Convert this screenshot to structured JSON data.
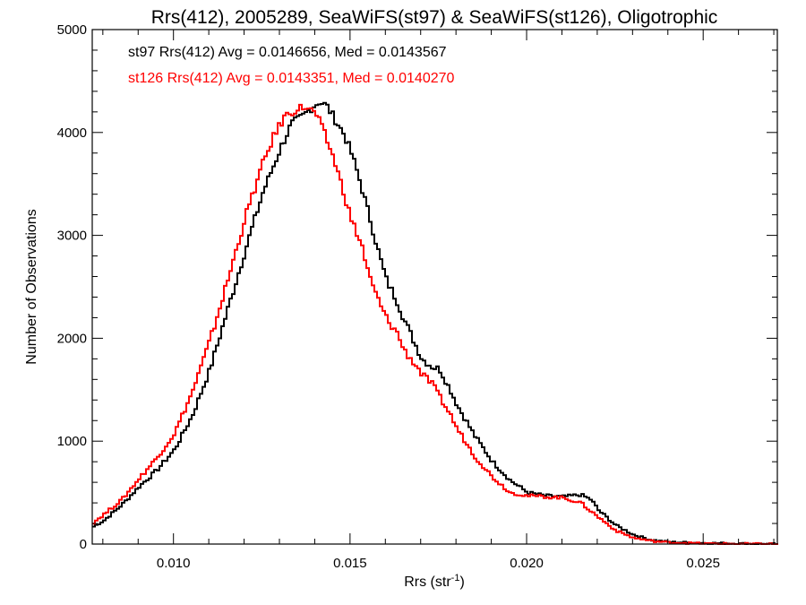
{
  "chart_data": {
    "type": "line",
    "title": "Rrs(412), 2005289, SeaWiFS(st97) & SeaWiFS(st126), Oligotrophic",
    "xlabel": "Rrs (str",
    "xlabel_sup": "-1",
    "xlabel_close": ")",
    "ylabel": "Number of Observations",
    "xlim": [
      0.0077,
      0.0271
    ],
    "ylim": [
      0,
      5000
    ],
    "x_ticks": [
      "0.010",
      "0.015",
      "0.020",
      "0.025"
    ],
    "y_ticks": [
      "0",
      "1000",
      "2000",
      "3000",
      "4000",
      "5000"
    ],
    "grid": false,
    "legend_position": "top-left",
    "series": [
      {
        "name": "st97 Rrs(412) Avg = 0.0146656, Med = 0.0143567",
        "color": "#000000",
        "x": [
          0.0077,
          0.008,
          0.0085,
          0.009,
          0.0095,
          0.01,
          0.0105,
          0.011,
          0.0115,
          0.012,
          0.0125,
          0.013,
          0.0133,
          0.0136,
          0.0139,
          0.0141,
          0.0143,
          0.0145,
          0.0148,
          0.015,
          0.0152,
          0.0155,
          0.0158,
          0.016,
          0.0163,
          0.0165,
          0.0168,
          0.017,
          0.0173,
          0.0175,
          0.0178,
          0.018,
          0.0185,
          0.019,
          0.0195,
          0.02,
          0.0205,
          0.021,
          0.0215,
          0.0218,
          0.022,
          0.0225,
          0.023,
          0.0235,
          0.024,
          0.025,
          0.026,
          0.0271
        ],
        "y": [
          170,
          230,
          380,
          560,
          720,
          920,
          1250,
          1700,
          2280,
          2860,
          3420,
          3850,
          4080,
          4150,
          4250,
          4300,
          4260,
          4150,
          3980,
          3800,
          3580,
          3200,
          2800,
          2560,
          2360,
          2180,
          1950,
          1800,
          1720,
          1700,
          1500,
          1350,
          1050,
          800,
          620,
          500,
          470,
          460,
          480,
          430,
          330,
          180,
          90,
          40,
          20,
          10,
          5,
          0
        ]
      },
      {
        "name": "st126 Rrs(412) Avg = 0.0143351, Med = 0.0140270",
        "color": "#ff0000",
        "x": [
          0.0077,
          0.008,
          0.0085,
          0.009,
          0.0095,
          0.01,
          0.0105,
          0.011,
          0.0115,
          0.012,
          0.0125,
          0.0128,
          0.0131,
          0.0134,
          0.0137,
          0.014,
          0.0142,
          0.0145,
          0.0148,
          0.015,
          0.0153,
          0.0155,
          0.0158,
          0.016,
          0.0163,
          0.0165,
          0.0168,
          0.017,
          0.0173,
          0.0175,
          0.0178,
          0.018,
          0.0185,
          0.019,
          0.0195,
          0.02,
          0.0205,
          0.021,
          0.0215,
          0.022,
          0.0225,
          0.023,
          0.0235,
          0.024,
          0.025,
          0.026,
          0.0271
        ],
        "y": [
          210,
          290,
          430,
          640,
          840,
          1080,
          1480,
          1980,
          2560,
          3180,
          3700,
          3960,
          4150,
          4220,
          4250,
          4180,
          4020,
          3750,
          3400,
          3150,
          2900,
          2600,
          2340,
          2190,
          2050,
          1880,
          1750,
          1650,
          1550,
          1430,
          1260,
          1120,
          850,
          650,
          500,
          470,
          460,
          450,
          400,
          260,
          130,
          60,
          30,
          15,
          5,
          2,
          0
        ]
      }
    ]
  }
}
